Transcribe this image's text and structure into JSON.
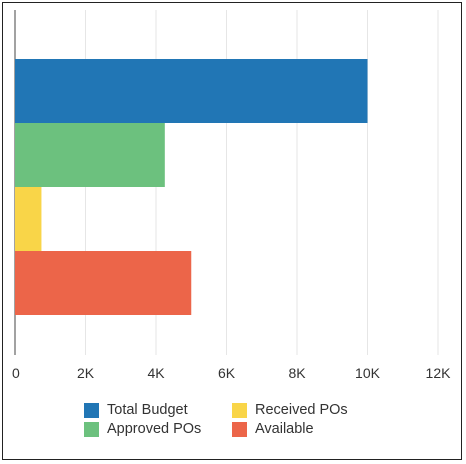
{
  "chart_data": {
    "type": "bar",
    "orientation": "horizontal",
    "categories": [
      "Total Budget",
      "Approved POs",
      "Received POs",
      "Available"
    ],
    "values": [
      10000,
      4250,
      750,
      5000
    ],
    "colors": [
      "#2176B5",
      "#6CC17E",
      "#F9D548",
      "#EC6549"
    ],
    "xlim": [
      0,
      12000
    ],
    "xticks": [
      0,
      2000,
      4000,
      6000,
      8000,
      10000,
      12000
    ],
    "xtick_labels": [
      "0",
      "2K",
      "4K",
      "6K",
      "8K",
      "10K",
      "12K"
    ],
    "grid": true,
    "legend": {
      "placement": "bottom",
      "entries": [
        "Total Budget",
        "Received POs",
        "Approved POs",
        "Available"
      ],
      "colors": [
        "#2176B5",
        "#F9D548",
        "#6CC17E",
        "#EC6549"
      ]
    }
  }
}
